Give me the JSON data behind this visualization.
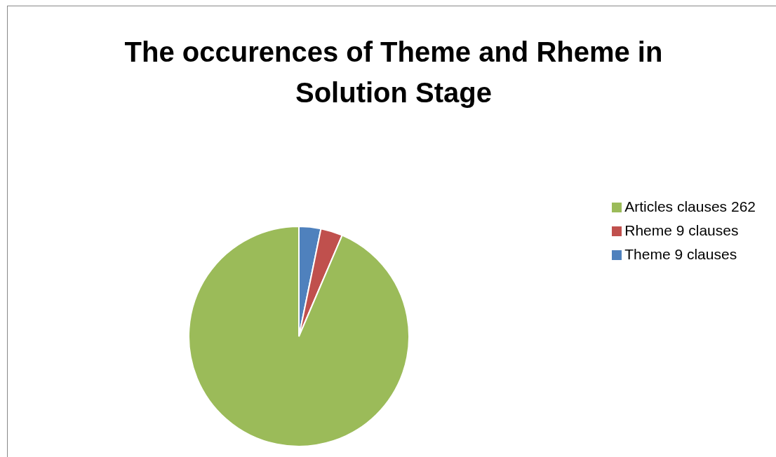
{
  "chart_data": {
    "type": "pie",
    "title": "The occurences of Theme and Rheme in Solution Stage",
    "categories": [
      "Theme 9 clauses",
      "Rheme 9 clauses",
      "Articles clauses 262"
    ],
    "values": [
      9,
      9,
      262
    ],
    "colors": [
      "#4f81bd",
      "#c0504d",
      "#9bbb59"
    ],
    "legend": "right"
  }
}
